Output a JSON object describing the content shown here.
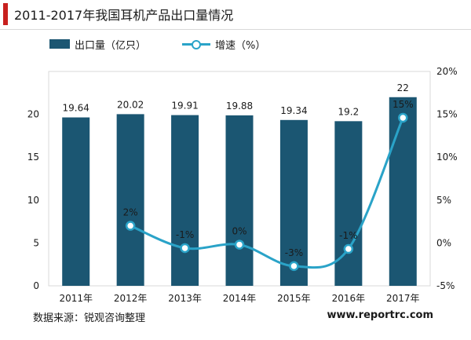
{
  "title": "2011-2017年我国耳机产品出口量情况",
  "colors": {
    "bar": "#1b5672",
    "line": "#2aa3c8",
    "accent": "#c8201e",
    "grid": "#d9d9d9"
  },
  "legend": {
    "bar_label": "出口量（亿只）",
    "line_label": "增速（%）"
  },
  "chart_data": {
    "type": "bar",
    "categories": [
      "2011年",
      "2012年",
      "2013年",
      "2014年",
      "2015年",
      "2016年",
      "2017年"
    ],
    "series": [
      {
        "name": "出口量（亿只）",
        "type": "bar",
        "axis": "left",
        "values": [
          19.64,
          20.02,
          19.91,
          19.88,
          19.34,
          19.2,
          22
        ],
        "labels": [
          "19.64",
          "20.02",
          "19.91",
          "19.88",
          "19.34",
          "19.2",
          "22"
        ]
      },
      {
        "name": "增速（%）",
        "type": "line",
        "axis": "right",
        "values": [
          null,
          2,
          -0.6,
          -0.2,
          -2.7,
          -0.7,
          14.6
        ],
        "labels": [
          "",
          "2%",
          "-1%",
          "0%",
          "-3%",
          "-1%",
          "15%"
        ]
      }
    ],
    "y_left": {
      "min": 0,
      "max": 25,
      "ticks": [
        0,
        5,
        10,
        15,
        20
      ],
      "tick_labels": [
        "0",
        "5",
        "10",
        "15",
        "20"
      ]
    },
    "y_right": {
      "min": -5,
      "max": 20,
      "ticks": [
        -5,
        0,
        5,
        10,
        15,
        20
      ],
      "tick_labels": [
        "-5%",
        "0%",
        "5%",
        "10%",
        "15%",
        "20%"
      ]
    },
    "grid": false,
    "legend_position": "top"
  },
  "source": "数据来源：锐观咨询整理",
  "watermark": "www.reportrc.com"
}
